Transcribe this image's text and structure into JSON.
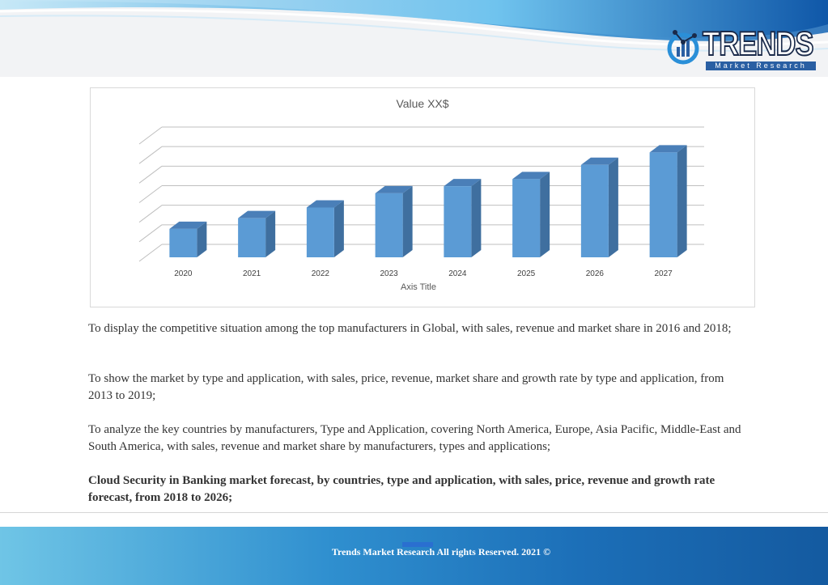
{
  "brand": {
    "name": "TRENDS",
    "tagline": "Market Research"
  },
  "chart_data": {
    "type": "bar",
    "title": "Value XX$",
    "xlabel": "Axis Title",
    "ylabel": "",
    "categories": [
      "2020",
      "2021",
      "2022",
      "2023",
      "2024",
      "2025",
      "2026",
      "2027"
    ],
    "values": [
      1.6,
      2.2,
      2.8,
      3.6,
      4.0,
      4.4,
      5.2,
      5.9
    ],
    "ylim": [
      0,
      6.6
    ],
    "gridlines": 7,
    "grid": true,
    "three_d": true,
    "bar_color": "#5b9bd5",
    "bar_side_color": "#3f6f9f",
    "bar_top_color": "#4a7fb8"
  },
  "paragraphs": [
    {
      "text": "To display the competitive situation among the top manufacturers in Global, with sales, revenue and market share in 2016 and 2018;",
      "bold": false
    },
    {
      "text": "To show the market by type and application, with sales, price, revenue, market share and growth rate by type and application, from 2013 to 2019;",
      "bold": false
    },
    {
      "text": "To analyze the key countries by manufacturers, Type and Application, covering North America, Europe, Asia Pacific, Middle-East and South America, with sales, revenue and market share by manufacturers, types and applications;",
      "bold": false
    },
    {
      "text": "Cloud Security in Banking market forecast, by countries, type and application, with sales, price, revenue and growth rate forecast, from 2018 to 2026;",
      "bold": true
    }
  ],
  "footer": {
    "text": "Trends Market Research All rights Reserved. 2021 ©"
  },
  "colors": {
    "header_blue": "#1f74c4",
    "footer_blue": "#1c6fb8",
    "text": "#333333"
  }
}
